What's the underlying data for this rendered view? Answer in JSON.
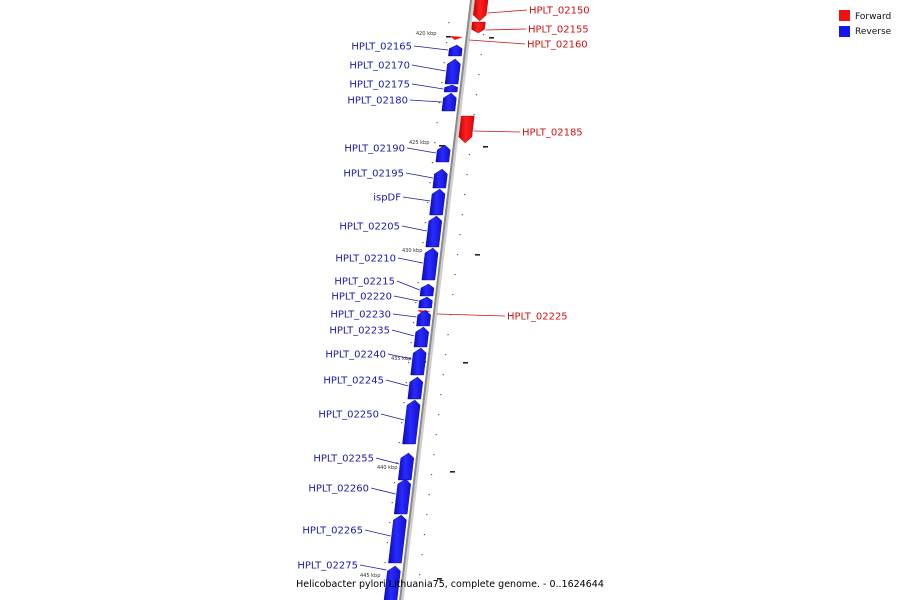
{
  "colors": {
    "forward": "#ee1111",
    "reverse": "#1515ee",
    "forward_label": "#cc1111",
    "reverse_label": "#1a1aa6",
    "backbone": "#9a9a9a"
  },
  "legend": {
    "forward": "Forward",
    "reverse": "Reverse"
  },
  "caption": "Helicobacter pylori Lithuania75, complete genome. - 0..1624644",
  "scale_labels": [
    "420 kbp",
    "425 kbp",
    "430 kbp",
    "435 kbp",
    "440 kbp",
    "445 kbp"
  ],
  "genes": [
    {
      "name": "HPLT_02150",
      "strand": "forward"
    },
    {
      "name": "HPLT_02155",
      "strand": "forward"
    },
    {
      "name": "HPLT_02160",
      "strand": "forward"
    },
    {
      "name": "HPLT_02165",
      "strand": "reverse"
    },
    {
      "name": "HPLT_02170",
      "strand": "reverse"
    },
    {
      "name": "HPLT_02175",
      "strand": "reverse"
    },
    {
      "name": "HPLT_02180",
      "strand": "reverse"
    },
    {
      "name": "HPLT_02185",
      "strand": "forward"
    },
    {
      "name": "HPLT_02190",
      "strand": "reverse"
    },
    {
      "name": "HPLT_02195",
      "strand": "reverse"
    },
    {
      "name": "ispDF",
      "strand": "reverse"
    },
    {
      "name": "HPLT_02205",
      "strand": "reverse"
    },
    {
      "name": "HPLT_02210",
      "strand": "reverse"
    },
    {
      "name": "HPLT_02215",
      "strand": "reverse"
    },
    {
      "name": "HPLT_02220",
      "strand": "reverse"
    },
    {
      "name": "HPLT_02225",
      "strand": "forward"
    },
    {
      "name": "HPLT_02230",
      "strand": "reverse"
    },
    {
      "name": "HPLT_02235",
      "strand": "reverse"
    },
    {
      "name": "HPLT_02240",
      "strand": "reverse"
    },
    {
      "name": "HPLT_02245",
      "strand": "reverse"
    },
    {
      "name": "HPLT_02250",
      "strand": "reverse"
    },
    {
      "name": "HPLT_02255",
      "strand": "reverse"
    },
    {
      "name": "HPLT_02260",
      "strand": "reverse"
    },
    {
      "name": "HPLT_02265",
      "strand": "reverse"
    },
    {
      "name": "HPLT_02275",
      "strand": "reverse"
    }
  ]
}
